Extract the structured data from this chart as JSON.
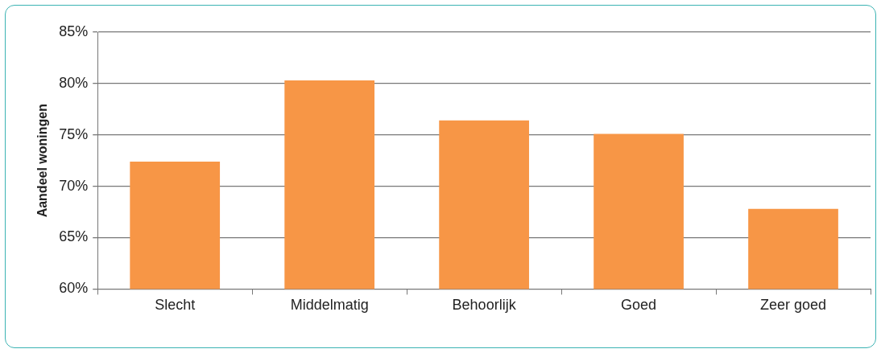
{
  "chart_data": {
    "type": "bar",
    "ylabel": "Aandeel woningen",
    "categories": [
      "Slecht",
      "Middelmatig",
      "Behoorlijk",
      "Goed",
      "Zeer goed"
    ],
    "values": [
      72.4,
      80.3,
      76.4,
      75.1,
      67.8
    ],
    "color": "#f79646",
    "ylim": [
      60,
      85
    ],
    "yticks": [
      {
        "value": 60,
        "label": "60%"
      },
      {
        "value": 65,
        "label": "65%"
      },
      {
        "value": 70,
        "label": "70%"
      },
      {
        "value": 75,
        "label": "75%"
      },
      {
        "value": 80,
        "label": "80%"
      },
      {
        "value": 85,
        "label": "85%"
      }
    ],
    "grid": "y",
    "legend": false
  }
}
